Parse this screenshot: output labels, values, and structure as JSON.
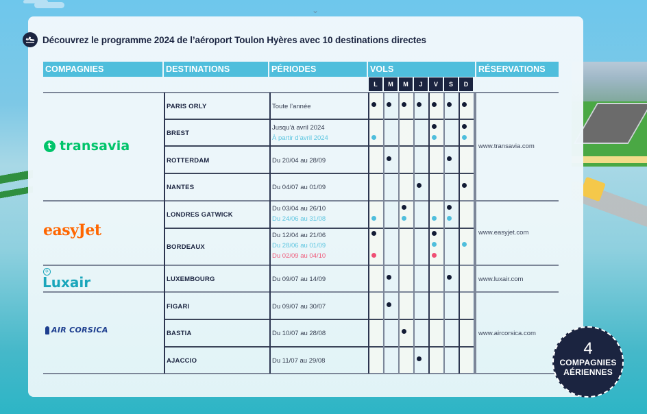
{
  "title": "Découvrez le programme 2024 de l’aéroport Toulon Hyères avec 10 destinations directes",
  "icons": {
    "title": "airplane-departure-icon"
  },
  "headers": {
    "companies": "COMPAGNIES",
    "destinations": "DESTINATIONS",
    "periods": "PÉRIODES",
    "flights": "VOLS",
    "reservations": "RÉSERVATIONS"
  },
  "days": [
    "L",
    "M",
    "M",
    "J",
    "V",
    "S",
    "D"
  ],
  "legend_colors": {
    "dark": "#131c35",
    "blue": "#4fbedc",
    "pink": "#ef4f74",
    "header": "#4fbedc",
    "day_header": "#1b2440"
  },
  "airlines": [
    {
      "name": "transavia",
      "url": "www.transavia.com",
      "color": "#00c46a",
      "routes": [
        {
          "destination": "PARIS ORLY",
          "periods": [
            {
              "text": "Toute l’année",
              "color": "dark",
              "days": [
                1,
                1,
                1,
                1,
                1,
                1,
                1
              ]
            }
          ]
        },
        {
          "destination": "BREST",
          "periods": [
            {
              "text": "Jusqu’à avril 2024",
              "color": "dark",
              "days": [
                0,
                0,
                0,
                0,
                1,
                0,
                1
              ]
            },
            {
              "text": "À partir d’avril 2024",
              "color": "blue",
              "days": [
                1,
                0,
                0,
                0,
                1,
                0,
                1
              ]
            }
          ]
        },
        {
          "destination": "ROTTERDAM",
          "periods": [
            {
              "text": "Du 20/04 au 28/09",
              "color": "dark",
              "days": [
                0,
                1,
                0,
                0,
                0,
                1,
                0
              ]
            }
          ]
        },
        {
          "destination": "NANTES",
          "periods": [
            {
              "text": "Du 04/07 au 01/09",
              "color": "dark",
              "days": [
                0,
                0,
                0,
                1,
                0,
                0,
                1
              ]
            }
          ]
        }
      ]
    },
    {
      "name": "easyJet",
      "url": "www.easyjet.com",
      "color": "#ff6600",
      "routes": [
        {
          "destination": "LONDRES GATWICK",
          "periods": [
            {
              "text": "Du 03/04 au 26/10",
              "color": "dark",
              "days": [
                0,
                0,
                1,
                0,
                0,
                1,
                0
              ]
            },
            {
              "text": "Du 24/06 au 31/08",
              "color": "blue",
              "days": [
                1,
                0,
                1,
                0,
                1,
                1,
                0
              ]
            }
          ]
        },
        {
          "destination": "BORDEAUX",
          "periods": [
            {
              "text": "Du 12/04 au 21/06",
              "color": "dark",
              "days": [
                1,
                0,
                0,
                0,
                1,
                0,
                0
              ]
            },
            {
              "text": "Du 28/06 au 01/09",
              "color": "blue",
              "days": [
                0,
                0,
                0,
                0,
                1,
                0,
                1
              ]
            },
            {
              "text": "Du 02/09 au 04/10",
              "color": "pink",
              "days": [
                1,
                0,
                0,
                0,
                1,
                0,
                0
              ]
            }
          ]
        }
      ]
    },
    {
      "name": "Luxair",
      "url": "www.luxair.com",
      "color": "#1aa6bb",
      "routes": [
        {
          "destination": "LUXEMBOURG",
          "periods": [
            {
              "text": "Du 09/07 au 14/09",
              "color": "dark",
              "days": [
                0,
                1,
                0,
                0,
                0,
                1,
                0
              ]
            }
          ]
        }
      ]
    },
    {
      "name": "AIR CORSICA",
      "url": "www.aircorsica.com",
      "color": "#1d3e8f",
      "routes": [
        {
          "destination": "FIGARI",
          "periods": [
            {
              "text": "Du 09/07 au 30/07",
              "color": "dark",
              "days": [
                0,
                1,
                0,
                0,
                0,
                0,
                0
              ]
            }
          ]
        },
        {
          "destination": "BASTIA",
          "periods": [
            {
              "text": "Du 10/07 au 28/08",
              "color": "dark",
              "days": [
                0,
                0,
                1,
                0,
                0,
                0,
                0
              ]
            }
          ]
        },
        {
          "destination": "AJACCIO",
          "periods": [
            {
              "text": "Du 11/07 au 29/08",
              "color": "dark",
              "days": [
                0,
                0,
                0,
                1,
                0,
                0,
                0
              ]
            }
          ]
        }
      ]
    }
  ],
  "badge": {
    "number": "4",
    "line1": "COMPAGNIES",
    "line2": "AÉRIENNES"
  }
}
